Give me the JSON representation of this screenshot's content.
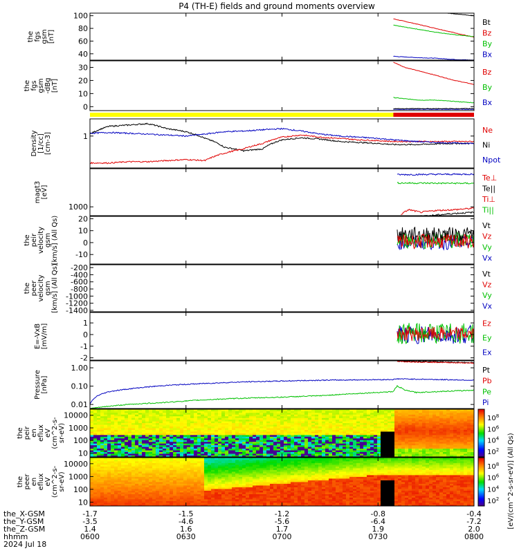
{
  "title": "P4 (TH-E) fields and ground moments overview",
  "colors": {
    "black": "#000000",
    "red": "#e00000",
    "green": "#00c000",
    "blue": "#0000c0",
    "yellow": "#ffff00",
    "mode_bar_red": "#e00000"
  },
  "chart_data": [
    {
      "type": "line",
      "id": "fgs",
      "ylabel": [
        "the",
        "fgs",
        "gsm",
        "[nT]"
      ],
      "yticks": [
        "100",
        "80",
        "60",
        "40"
      ],
      "ylim": [
        30,
        104
      ],
      "legend": [
        {
          "label": "Bt",
          "color": "black"
        },
        {
          "label": "Bz",
          "color": "red"
        },
        {
          "label": "By",
          "color": "green"
        },
        {
          "label": "Bx",
          "color": "blue"
        }
      ],
      "series": [
        {
          "color": "black",
          "x": [
            0.88,
            0.93,
            1.0
          ],
          "y": [
            108,
            104,
            100
          ]
        },
        {
          "color": "red",
          "x": [
            0.79,
            0.85,
            0.9,
            0.95,
            1.0
          ],
          "y": [
            95,
            87,
            80,
            73,
            66
          ]
        },
        {
          "color": "green",
          "x": [
            0.79,
            0.85,
            0.9,
            0.95,
            1.0
          ],
          "y": [
            85,
            79,
            74,
            70,
            67
          ]
        },
        {
          "color": "blue",
          "x": [
            0.79,
            0.85,
            0.9,
            0.95,
            1.0
          ],
          "y": [
            36,
            34,
            33,
            31,
            30
          ]
        }
      ]
    },
    {
      "type": "line",
      "id": "fgs-dbg",
      "ylabel": [
        "the",
        "fgs",
        "gsm",
        "-dBg",
        "[nT]"
      ],
      "yticks": [
        "30",
        "20",
        "10",
        "0"
      ],
      "ylim": [
        -3,
        35
      ],
      "legend": [
        {
          "label": "Bz",
          "color": "red"
        },
        {
          "label": "By",
          "color": "green"
        },
        {
          "label": "Bx",
          "color": "blue"
        }
      ],
      "series": [
        {
          "color": "red",
          "x": [
            0.79,
            0.82,
            0.86,
            0.9,
            0.95,
            1.0
          ],
          "y": [
            34,
            30,
            27,
            24,
            20,
            17
          ]
        },
        {
          "color": "green",
          "x": [
            0.79,
            0.82,
            0.86,
            0.9,
            0.95,
            1.0
          ],
          "y": [
            7,
            6,
            5,
            5,
            4,
            3
          ]
        },
        {
          "color": "blue",
          "x": [
            0.79,
            1.0
          ],
          "y": [
            -2,
            -2
          ]
        },
        {
          "color": "black",
          "x": [
            0.79,
            1.0
          ],
          "y": [
            -1.5,
            -1.5
          ]
        }
      ]
    },
    {
      "type": "line",
      "id": "density",
      "ylabel": [
        "Density",
        "[1/cc]",
        "[cm-3]"
      ],
      "yticks": [
        "1"
      ],
      "ylim": [
        0.05,
        5
      ],
      "log": true,
      "legend": [
        {
          "label": "Ne",
          "color": "red"
        },
        {
          "label": "Ni",
          "color": "black"
        },
        {
          "label": "Npot",
          "color": "blue"
        }
      ],
      "series": [
        {
          "color": "black",
          "x": [
            0,
            0.05,
            0.1,
            0.15,
            0.2,
            0.25,
            0.3,
            0.35,
            0.4,
            0.45,
            0.5,
            0.55,
            0.6,
            0.65,
            0.7,
            0.75,
            0.79,
            0.85,
            0.9,
            0.95,
            1.0
          ],
          "y": [
            1.2,
            2.5,
            2.8,
            3.2,
            2.0,
            1.5,
            0.8,
            0.35,
            0.25,
            0.3,
            0.7,
            0.85,
            0.75,
            0.6,
            0.55,
            0.5,
            0.45,
            0.45,
            0.48,
            0.5,
            0.5
          ]
        },
        {
          "color": "red",
          "x": [
            0,
            0.05,
            0.1,
            0.15,
            0.2,
            0.25,
            0.3,
            0.35,
            0.4,
            0.45,
            0.5,
            0.55,
            0.6,
            0.65,
            0.7,
            0.75,
            0.79,
            0.85,
            0.9,
            0.95,
            1.0
          ],
          "y": [
            0.08,
            0.08,
            0.09,
            0.09,
            0.1,
            0.11,
            0.1,
            0.2,
            0.3,
            0.5,
            0.9,
            1.1,
            0.9,
            0.8,
            0.7,
            0.65,
            0.6,
            0.6,
            0.6,
            0.6,
            0.6
          ]
        },
        {
          "color": "blue",
          "x": [
            0,
            0.05,
            0.1,
            0.15,
            0.2,
            0.25,
            0.3,
            0.35,
            0.4,
            0.45,
            0.5,
            0.55,
            0.6,
            0.65,
            0.7,
            0.75,
            0.79,
            0.85,
            0.9,
            0.95,
            1.0
          ],
          "y": [
            1.3,
            1.4,
            1.3,
            1.2,
            1.1,
            1.0,
            1.2,
            1.5,
            1.6,
            1.8,
            2.0,
            1.6,
            1.2,
            1.0,
            0.9,
            0.8,
            0.7,
            0.6,
            0.55,
            0.52,
            0.5
          ]
        }
      ]
    },
    {
      "type": "line",
      "id": "temperature",
      "ylabel": [
        "magt3",
        "[eV]"
      ],
      "yticks": [
        "1000"
      ],
      "ylim": [
        500,
        20000
      ],
      "log": true,
      "legend": [
        {
          "label": "Te⊥",
          "color": "red"
        },
        {
          "label": "Te||",
          "color": "black"
        },
        {
          "label": "Ti⊥",
          "color": "red"
        },
        {
          "label": "Ti||",
          "color": "green"
        }
      ],
      "series": [
        {
          "color": "blue",
          "x": [
            0.8,
            0.9,
            1.0
          ],
          "y": [
            12500,
            12800,
            13000
          ]
        },
        {
          "color": "green",
          "x": [
            0.8,
            0.9,
            1.0
          ],
          "y": [
            6500,
            6400,
            6300
          ]
        },
        {
          "color": "red",
          "x": [
            0.81,
            0.83,
            0.86,
            0.9,
            0.95,
            1.0
          ],
          "y": [
            550,
            800,
            650,
            750,
            800,
            900
          ]
        },
        {
          "color": "black",
          "x": [
            0.82,
            0.86,
            0.9,
            0.95,
            1.0
          ],
          "y": [
            450,
            480,
            520,
            600,
            650
          ]
        }
      ]
    },
    {
      "type": "line",
      "id": "peir-velocity",
      "ylabel": [
        "the",
        "peir",
        "velocity",
        "gsm",
        "[km/s] (All Qs)"
      ],
      "yticks": [
        "20",
        "10",
        "0",
        "-10"
      ],
      "ylim": [
        -18,
        22
      ],
      "legend": [
        {
          "label": "Vt",
          "color": "black"
        },
        {
          "label": "Vz",
          "color": "red"
        },
        {
          "label": "Vy",
          "color": "green"
        },
        {
          "label": "Vx",
          "color": "blue"
        }
      ],
      "series": [
        {
          "color": "blue",
          "x": [
            0.8,
            1.0
          ],
          "y": [
            0,
            0
          ],
          "noise": 6
        },
        {
          "color": "green",
          "x": [
            0.8,
            1.0
          ],
          "y": [
            2,
            2
          ],
          "noise": 7
        },
        {
          "color": "black",
          "x": [
            0.8,
            1.0
          ],
          "y": [
            7,
            7
          ],
          "noise": 6
        },
        {
          "color": "red",
          "x": [
            0.8,
            1.0
          ],
          "y": [
            1,
            1
          ],
          "noise": 6
        }
      ]
    },
    {
      "type": "line",
      "id": "peer-velocity",
      "ylabel": [
        "the",
        "peer",
        "velocity",
        "gsm",
        "[km/s] (All Qs)"
      ],
      "yticks": [
        "-200",
        "-400",
        "-600",
        "-800",
        "-1000",
        "-1200",
        "-1400"
      ],
      "ylim": [
        -1440,
        -120
      ],
      "legend": [
        {
          "label": "Vt",
          "color": "black"
        },
        {
          "label": "Vz",
          "color": "red"
        },
        {
          "label": "Vy",
          "color": "green"
        },
        {
          "label": "Vx",
          "color": "blue"
        }
      ],
      "series": []
    },
    {
      "type": "line",
      "id": "efield",
      "ylabel": [
        "E=-VxB",
        "[mV/m]"
      ],
      "yticks": [
        "1",
        "0",
        "-1",
        "-2"
      ],
      "ylim": [
        -2.2,
        1.9
      ],
      "legend": [
        {
          "label": "Ez",
          "color": "red"
        },
        {
          "label": "Ey",
          "color": "green"
        },
        {
          "label": "Ex",
          "color": "blue"
        }
      ],
      "series": [
        {
          "color": "blue",
          "x": [
            0.8,
            1.0
          ],
          "y": [
            0,
            0
          ],
          "noise": 0.8
        },
        {
          "color": "green",
          "x": [
            0.8,
            1.0
          ],
          "y": [
            0.1,
            0.1
          ],
          "noise": 0.9
        },
        {
          "color": "red",
          "x": [
            0.8,
            1.0
          ],
          "y": [
            0.05,
            0.05
          ],
          "noise": 0.6
        }
      ]
    },
    {
      "type": "line",
      "id": "pressure",
      "ylabel": [
        "Pressure",
        "[nPa]"
      ],
      "yticks": [
        "1.00",
        "0.10",
        "0.01"
      ],
      "ylim": [
        0.006,
        2.4
      ],
      "log": true,
      "legend": [
        {
          "label": "Pt",
          "color": "black"
        },
        {
          "label": "Pb",
          "color": "red"
        },
        {
          "label": "Pe",
          "color": "green"
        },
        {
          "label": "Pi",
          "color": "blue"
        }
      ],
      "series": [
        {
          "color": "black",
          "x": [
            0.8,
            0.9,
            1.0
          ],
          "y": [
            2.3,
            2.1,
            1.9
          ]
        },
        {
          "color": "red",
          "x": [
            0.8,
            0.9,
            1.0
          ],
          "y": [
            2.2,
            2.0,
            1.8
          ]
        },
        {
          "color": "blue",
          "x": [
            0,
            0.02,
            0.05,
            0.1,
            0.15,
            0.2,
            0.3,
            0.4,
            0.5,
            0.6,
            0.7,
            0.79,
            0.8,
            0.85,
            0.9,
            1.0
          ],
          "y": [
            0.01,
            0.03,
            0.05,
            0.07,
            0.09,
            0.11,
            0.14,
            0.17,
            0.19,
            0.21,
            0.22,
            0.23,
            0.25,
            0.24,
            0.23,
            0.21
          ]
        },
        {
          "color": "green",
          "x": [
            0,
            0.05,
            0.1,
            0.2,
            0.3,
            0.4,
            0.5,
            0.6,
            0.7,
            0.79,
            0.8,
            0.82,
            0.85,
            0.9,
            1.0
          ],
          "y": [
            0.006,
            0.008,
            0.01,
            0.013,
            0.018,
            0.022,
            0.025,
            0.03,
            0.04,
            0.05,
            0.1,
            0.06,
            0.045,
            0.05,
            0.06
          ]
        }
      ]
    },
    {
      "type": "heatmap",
      "id": "peir-eflux",
      "ylabel": [
        "the",
        "peir",
        "en",
        "eflux",
        "eV",
        "(cm^2-s-",
        "sr-eV)"
      ],
      "yticks": [
        "10000",
        "1000",
        "100",
        "10"
      ],
      "colorbar_ticks": [
        "10^8",
        "10^6",
        "10^4",
        "10^2"
      ],
      "colorbar_label": "[eV/(cm^2-s-sr-eV)] (All Qs)"
    },
    {
      "type": "heatmap",
      "id": "peer-eflux",
      "ylabel": [
        "the",
        "peer",
        "en",
        "eflux",
        "eV",
        "(cm^2-s-",
        "sr-eV)"
      ],
      "yticks": [
        "10000",
        "1000",
        "100",
        "10"
      ],
      "colorbar_ticks": [
        "10^8",
        "10^6",
        "10^4",
        "10^2"
      ],
      "colorbar_label": "[eV/(cm^2-s-sr-eV)] (All Qs)"
    }
  ],
  "mode_bar": {
    "yellow_until": 0.79
  },
  "xaxis": {
    "positions": [
      0,
      0.25,
      0.5,
      0.75,
      1.0
    ],
    "rows": [
      {
        "label": "the_X-GSM",
        "values": [
          "-1.7",
          "-1.5",
          "-1.2",
          "-0.8",
          "-0.4"
        ]
      },
      {
        "label": "the_Y-GSM",
        "values": [
          "-3.5",
          "-4.6",
          "-5.6",
          "-6.4",
          "-7.2"
        ]
      },
      {
        "label": "the_Z-GSM",
        "values": [
          "1.4",
          "1.6",
          "1.7",
          "1.9",
          "2.0"
        ]
      },
      {
        "label": "hhmm",
        "values": [
          "0600",
          "0630",
          "0700",
          "0730",
          "0800"
        ]
      }
    ],
    "date": "2024 Jul 18"
  }
}
